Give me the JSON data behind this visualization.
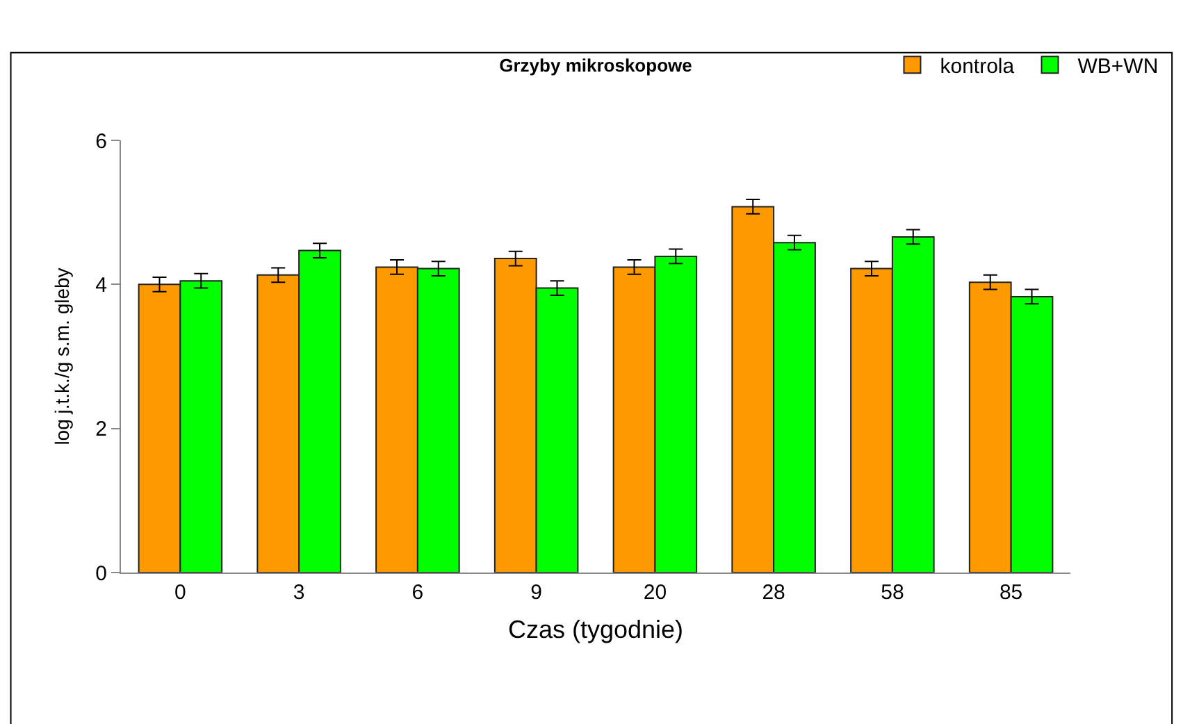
{
  "chart_data": {
    "type": "bar",
    "title": "Grzyby mikroskopowe",
    "xlabel": "Czas (tygodnie)",
    "ylabel": "log j.t.k./g s.m. gleby",
    "categories": [
      "0",
      "3",
      "6",
      "9",
      "20",
      "28",
      "58",
      "85"
    ],
    "series": [
      {
        "name": "kontrola",
        "color": "#ff9900",
        "values": [
          4.0,
          4.13,
          4.24,
          4.36,
          4.24,
          5.08,
          4.22,
          4.03
        ],
        "errors": [
          0.1,
          0.1,
          0.1,
          0.1,
          0.1,
          0.1,
          0.1,
          0.1
        ]
      },
      {
        "name": "WB+WN",
        "color": "#00ff00",
        "values": [
          4.05,
          4.47,
          4.22,
          3.95,
          4.39,
          4.58,
          4.66,
          3.83
        ],
        "errors": [
          0.1,
          0.1,
          0.1,
          0.1,
          0.1,
          0.1,
          0.1,
          0.1
        ]
      }
    ],
    "ylim": [
      0,
      6
    ],
    "yticks": [
      0,
      2,
      4,
      6
    ],
    "legend": "top right"
  }
}
